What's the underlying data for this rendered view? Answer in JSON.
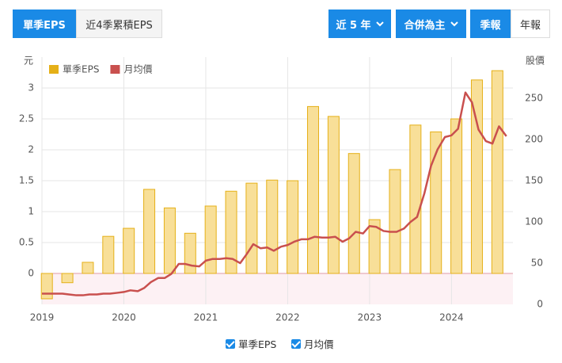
{
  "controls": {
    "tabs": [
      "單季EPS",
      "近4季累積EPS"
    ],
    "range": "近 5 年",
    "basis": "合併為主",
    "periods": [
      "季報",
      "年報"
    ]
  },
  "chart_data": {
    "type": "bar_line",
    "y_label": "元",
    "y2_label": "股價",
    "xlim": [
      2019,
      2024.75
    ],
    "xticks": [
      2019,
      2020,
      2021,
      2022,
      2023,
      2024
    ],
    "ylim": [
      -0.5,
      3.5
    ],
    "yticks": [
      0,
      0.5,
      1,
      1.5,
      2,
      2.5,
      3
    ],
    "y2lim": [
      0,
      300
    ],
    "y2ticks": [
      0,
      50,
      100,
      150,
      200,
      250
    ],
    "grid": true,
    "legend": "top-left",
    "series": [
      {
        "name": "單季EPS",
        "type": "bar",
        "color": "#e5b018",
        "fill": "#f8df98",
        "x": [
          2019.06,
          2019.31,
          2019.56,
          2019.81,
          2020.06,
          2020.31,
          2020.56,
          2020.81,
          2021.06,
          2021.31,
          2021.56,
          2021.81,
          2022.06,
          2022.31,
          2022.56,
          2022.81,
          2023.06,
          2023.31,
          2023.56,
          2023.81,
          2024.06,
          2024.31,
          2024.56
        ],
        "values": [
          -0.41,
          -0.15,
          0.18,
          0.6,
          0.73,
          1.36,
          1.06,
          0.65,
          1.09,
          1.33,
          1.46,
          1.51,
          1.5,
          2.7,
          2.54,
          1.94,
          0.87,
          1.68,
          2.4,
          2.29,
          2.5,
          3.13,
          3.28
        ]
      },
      {
        "name": "月均價",
        "type": "line",
        "axis": "y2",
        "color": "#c9504e",
        "x": [
          2019,
          2019.08,
          2019.17,
          2019.25,
          2019.33,
          2019.42,
          2019.5,
          2019.58,
          2019.67,
          2019.75,
          2019.83,
          2019.92,
          2020,
          2020.08,
          2020.17,
          2020.25,
          2020.33,
          2020.42,
          2020.5,
          2020.58,
          2020.67,
          2020.75,
          2020.83,
          2020.92,
          2021,
          2021.08,
          2021.17,
          2021.25,
          2021.33,
          2021.42,
          2021.5,
          2021.58,
          2021.67,
          2021.75,
          2021.83,
          2021.92,
          2022,
          2022.08,
          2022.17,
          2022.25,
          2022.33,
          2022.42,
          2022.5,
          2022.58,
          2022.67,
          2022.75,
          2022.83,
          2022.92,
          2023,
          2023.08,
          2023.17,
          2023.25,
          2023.33,
          2023.42,
          2023.5,
          2023.58,
          2023.67,
          2023.75,
          2023.83,
          2023.92,
          2024,
          2024.08,
          2024.17,
          2024.25,
          2024.33,
          2024.42,
          2024.5,
          2024.58,
          2024.67
        ],
        "values": [
          13,
          13,
          13,
          13,
          12,
          11,
          11,
          12,
          12,
          13,
          13,
          14,
          15,
          17,
          16,
          20,
          27,
          32,
          32,
          37,
          49,
          49,
          47,
          46,
          53,
          55,
          55,
          56,
          55,
          50,
          61,
          73,
          68,
          69,
          65,
          70,
          72,
          76,
          79,
          79,
          82,
          81,
          81,
          82,
          76,
          80,
          88,
          86,
          95,
          94,
          89,
          88,
          88,
          92,
          100,
          106,
          135,
          168,
          188,
          203,
          205,
          213,
          257,
          245,
          212,
          198,
          195,
          216,
          204
        ]
      }
    ]
  }
}
